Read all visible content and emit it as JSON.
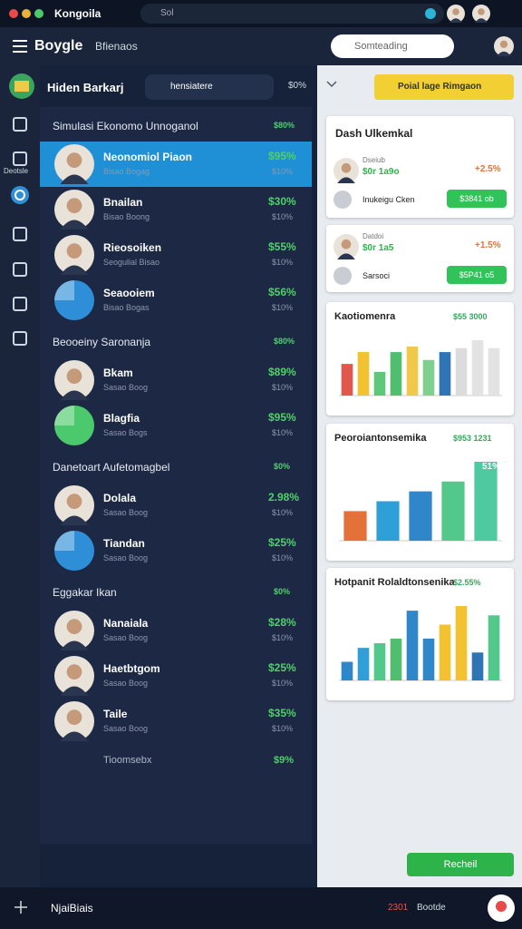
{
  "topbar": {
    "title": "Kongoila",
    "search": "Sol"
  },
  "navbar": {
    "brand": "Boygle",
    "tab": "Bfienaos",
    "search": "Somteading"
  },
  "header": {
    "name": "Hiden Barkarj",
    "pill": "hensiatere",
    "value": "$0%"
  },
  "sidebar": {
    "label": "Deotsle"
  },
  "sections": [
    {
      "title": "Simulasi Ekonomo Unnoganol",
      "value": "$80%",
      "items": [
        {
          "name": "Neonomiol Piaon",
          "sub": "Bisao Bogag",
          "value": "$95%",
          "sub_value": "$10%",
          "active": true,
          "avatar": "person"
        },
        {
          "name": "Bnailan",
          "sub": "Bisao Boong",
          "value": "$30%",
          "sub_value": "$10%",
          "avatar": "person"
        },
        {
          "name": "Rieosoiken",
          "sub": "Seogulial Bisao",
          "value": "$55%",
          "sub_value": "$10%",
          "avatar": "person"
        },
        {
          "name": "Seaooiem",
          "sub": "Bisao Bogas",
          "value": "$56%",
          "sub_value": "$10%",
          "avatar": "pie",
          "pie_color": "#2e8fd8"
        }
      ]
    },
    {
      "title": "Beooeiny Saronanja",
      "value": "$80%",
      "items": [
        {
          "name": "Bkam",
          "sub": "Sasao Boog",
          "value": "$89%",
          "sub_value": "$10%",
          "avatar": "person"
        },
        {
          "name": "Blagfia",
          "sub": "Sasao Bogs",
          "value": "$95%",
          "sub_value": "$10%",
          "avatar": "pie",
          "pie_color": "#4cc96c"
        }
      ]
    },
    {
      "title": "Danetoart Aufetomagbel",
      "value": "$0%",
      "items": [
        {
          "name": "Dolala",
          "sub": "Sasao Boog",
          "value": "2.98%",
          "sub_value": "$10%",
          "avatar": "person"
        },
        {
          "name": "Tiandan",
          "sub": "Sasao Boog",
          "value": "$25%",
          "sub_value": "$10%",
          "avatar": "pie",
          "pie_color": "#2e8fd8"
        }
      ]
    },
    {
      "title": "Eggakar Ikan",
      "value": "$0%",
      "items": [
        {
          "name": "Nanaiala",
          "sub": "Sasao Boog",
          "value": "$28%",
          "sub_value": "$10%",
          "avatar": "person"
        },
        {
          "name": "Haetbtgom",
          "sub": "Sasao Boog",
          "value": "$25%",
          "sub_value": "$10%",
          "avatar": "person"
        },
        {
          "name": "Taile",
          "sub": "Sasao Boog",
          "value": "$35%",
          "sub_value": "$10%",
          "avatar": "person"
        }
      ]
    }
  ],
  "list_footer": {
    "label": "Tioomsebx",
    "value": "$9%"
  },
  "right": {
    "button": "Poial lage Rimgaon",
    "deal_card": {
      "title": "Dash Ulkemkal",
      "rows": [
        {
          "label": "Dseiub",
          "amount": "$0r 1a9o",
          "change": "+2.5%",
          "name": "Inukeigu Cken",
          "action": "$3841 ob"
        },
        {
          "label": "Datdoi",
          "amount": "$0r 1a5",
          "change": "+1.5%",
          "name": "Sarsoci",
          "action": "$5P41 o5"
        }
      ]
    },
    "charts": [
      {
        "title": "Kaotiomenra",
        "value": "$55 3000",
        "values": [
          40,
          55,
          30,
          55,
          62,
          45,
          55,
          60,
          70,
          60
        ],
        "colors": [
          "#e2574c",
          "#f2c230",
          "#5cc97a",
          "#4fbf6f",
          "#f0c84a",
          "#7fd08e",
          "#2f74b5",
          "#dcdcdc",
          "#e3e3e3",
          "#e3e3e3"
        ]
      },
      {
        "title": "Peoroiantonsemika",
        "value": "$953 1231",
        "values": [
          30,
          40,
          50,
          60,
          80
        ],
        "colors": [
          "#e4713a",
          "#2f9fd8",
          "#2f86c8",
          "#52c98a",
          "#4fc9a0"
        ],
        "label": "51%"
      },
      {
        "title": "Hotpanit Rolaldtonsenika",
        "value": "$2.55%",
        "values": [
          20,
          35,
          40,
          45,
          75,
          45,
          60,
          80,
          30,
          70
        ],
        "colors": [
          "#2f86c8",
          "#2f9fd8",
          "#52c98a",
          "#4fbf6f",
          "#2f86c8",
          "#2f86c8",
          "#f2c230",
          "#f2c230",
          "#2f74b5",
          "#52c98a"
        ]
      }
    ],
    "action": "Recheil"
  },
  "bottombar": {
    "label": "NjaiBiais",
    "count": "2301",
    "status": "Bootde"
  }
}
